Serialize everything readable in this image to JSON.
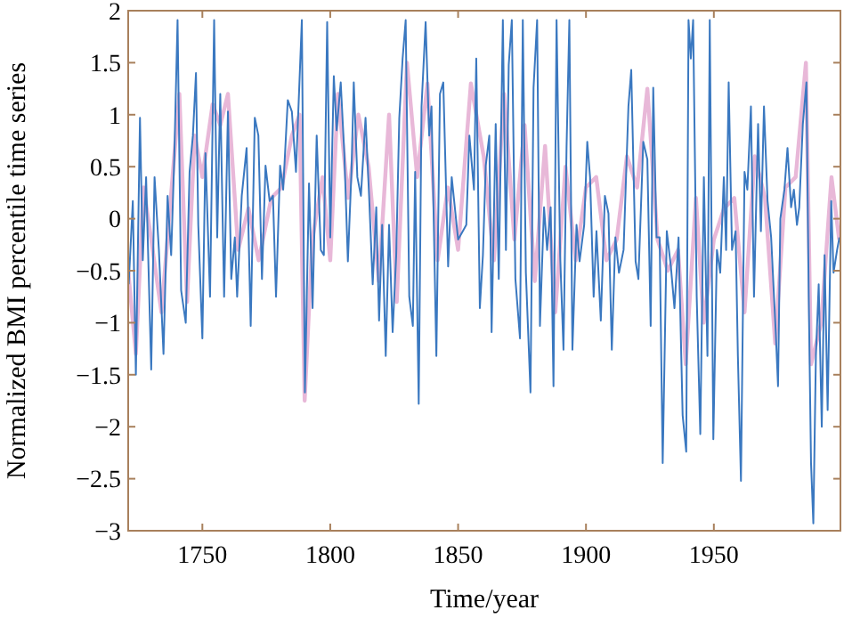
{
  "chart_data": {
    "type": "line",
    "xlabel": "Time/year",
    "ylabel": "Normalized BMI percentile time series",
    "xlim": [
      1721,
      1999.5
    ],
    "xticks": [
      1750,
      1800,
      1850,
      1900,
      1950
    ],
    "ylim": [
      -3,
      2
    ],
    "yticks": [
      {
        "value": -3,
        "label": "−3"
      },
      {
        "value": -2.5,
        "label": "−2.5"
      },
      {
        "value": -2,
        "label": "−2"
      },
      {
        "value": -1.5,
        "label": "−1.5"
      },
      {
        "value": -1,
        "label": "−1"
      },
      {
        "value": -0.5,
        "label": "−0.5"
      },
      0,
      0.5,
      1,
      1.5,
      2
    ],
    "grid": false,
    "marker": "none",
    "line_style": "solid",
    "series": [
      {
        "color": "#e8b8d8",
        "x": [
          1721,
          1724,
          1727,
          1730,
          1734,
          1738,
          1741,
          1744,
          1747,
          1750,
          1754,
          1757,
          1760,
          1764,
          1768,
          1772,
          1777,
          1781,
          1785,
          1788,
          1790,
          1793,
          1797,
          1800,
          1803,
          1807,
          1811,
          1815,
          1819,
          1823,
          1826,
          1830,
          1834,
          1838,
          1842,
          1846,
          1850,
          1855,
          1860,
          1864,
          1868,
          1872,
          1876,
          1880,
          1884,
          1888,
          1892,
          1896,
          1900,
          1904,
          1908,
          1912,
          1916,
          1920,
          1924,
          1928,
          1932,
          1936,
          1939,
          1943,
          1946,
          1950,
          1954,
          1958,
          1962,
          1966,
          1970,
          1974,
          1978,
          1982,
          1986,
          1988,
          1992,
          1996,
          1999
        ],
        "values": [
          -0.5,
          -1.3,
          0.3,
          -0.2,
          -0.9,
          0.3,
          1.2,
          -0.8,
          0.8,
          0.4,
          1.1,
          0.9,
          1.2,
          -0.3,
          0.1,
          -0.4,
          0.2,
          0.3,
          0.8,
          1.0,
          -1.75,
          -0.2,
          0.4,
          -0.4,
          1.2,
          0.2,
          1.0,
          0.5,
          -0.6,
          1.0,
          -0.8,
          1.5,
          0.4,
          1.3,
          -0.4,
          0.3,
          -0.3,
          1.3,
          0.6,
          -0.4,
          1.2,
          -0.2,
          0.9,
          -0.6,
          0.7,
          -0.9,
          0.5,
          -0.4,
          0.3,
          0.4,
          -0.4,
          -0.2,
          0.6,
          0.3,
          1.25,
          -0.2,
          -0.5,
          -0.3,
          -1.4,
          0.2,
          -1.0,
          -0.2,
          0.1,
          0.2,
          -0.9,
          0.6,
          0.2,
          -1.2,
          0.3,
          0.4,
          1.5,
          -1.4,
          -1.0,
          0.4,
          -0.2
        ]
      },
      {
        "color": "#3a78c0",
        "x": [
          1721.2,
          1722.8,
          1724,
          1725.6,
          1726.7,
          1728,
          1730,
          1731.3,
          1733,
          1734.8,
          1736.4,
          1737.8,
          1739,
          1740.3,
          1741.7,
          1743.5,
          1745,
          1746.3,
          1747.5,
          1748.4,
          1750,
          1751.2,
          1753,
          1754.6,
          1755.8,
          1757,
          1758.5,
          1760,
          1761.3,
          1762.7,
          1763.6,
          1765.4,
          1767.3,
          1768.9,
          1770.5,
          1771.9,
          1773.3,
          1774.7,
          1776.3,
          1777.6,
          1778.8,
          1780.4,
          1781.6,
          1783.4,
          1785,
          1786.6,
          1788.9,
          1790.1,
          1791.7,
          1793.1,
          1794.7,
          1796.3,
          1797.5,
          1798.8,
          1800,
          1801.4,
          1802.5,
          1804.1,
          1805.5,
          1806.9,
          1808.3,
          1809.2,
          1810.6,
          1812,
          1813.8,
          1815.2,
          1816.6,
          1818,
          1819.1,
          1820.3,
          1821.7,
          1823,
          1824.4,
          1825.8,
          1827,
          1828.3,
          1829.5,
          1830.9,
          1832.3,
          1833.2,
          1834.6,
          1835.7,
          1837.3,
          1838.7,
          1839.6,
          1841.5,
          1842.9,
          1844.2,
          1846.1,
          1847.5,
          1850,
          1853.2,
          1854.4,
          1856.2,
          1857.1,
          1858.5,
          1859.7,
          1860.8,
          1862.2,
          1863.1,
          1864.7,
          1865.9,
          1867.5,
          1868.7,
          1869.8,
          1871,
          1872.4,
          1874.2,
          1875.3,
          1876.5,
          1878.3,
          1879.5,
          1880.9,
          1882,
          1883.6,
          1884.8,
          1886.2,
          1887.3,
          1888.5,
          1889.9,
          1891.2,
          1892.4,
          1893.5,
          1894.7,
          1896.3,
          1897.5,
          1899.3,
          1900.5,
          1901.6,
          1903,
          1904.1,
          1905.8,
          1907.4,
          1908.8,
          1910.1,
          1911.5,
          1912.9,
          1914.7,
          1916.6,
          1917.7,
          1919.4,
          1920.5,
          1922.4,
          1924,
          1925.3,
          1926.3,
          1927.6,
          1928.8,
          1930,
          1931.6,
          1933.2,
          1934.6,
          1936.2,
          1937.8,
          1939.2,
          1940.1,
          1941,
          1941.9,
          1943.3,
          1944.7,
          1946.1,
          1947.5,
          1948.4,
          1949.8,
          1951.2,
          1952.5,
          1953.9,
          1954.8,
          1955.8,
          1957.1,
          1958.5,
          1959.4,
          1960.6,
          1962,
          1963.1,
          1964.5,
          1965.7,
          1967.3,
          1968.4,
          1969.6,
          1971,
          1972.4,
          1974.2,
          1975.1,
          1976,
          1977.6,
          1978.8,
          1980.2,
          1981.3,
          1982.5,
          1983.4,
          1984.8,
          1986.2,
          1987.1,
          1988,
          1988.9,
          1989.9,
          1991,
          1992.2,
          1993.3,
          1994.5,
          1995.9,
          1996.8,
          1998.2,
          1999.1
        ],
        "values": [
          -0.63,
          0.17,
          -1.5,
          0.97,
          -0.4,
          0.4,
          -1.45,
          0.4,
          -0.3,
          -1.3,
          0.22,
          -0.35,
          0.57,
          1.91,
          -0.69,
          -1.0,
          0.45,
          0.8,
          1.4,
          -0.06,
          -1.15,
          0.63,
          -0.75,
          1.91,
          -0.18,
          1.2,
          -0.75,
          1.03,
          -0.58,
          -0.18,
          -0.75,
          0.22,
          0.68,
          -1.03,
          0.97,
          0.8,
          -0.58,
          0.51,
          0.17,
          0.22,
          -0.75,
          0.51,
          0.28,
          1.14,
          1.03,
          0.45,
          1.91,
          -1.67,
          0.34,
          -0.86,
          0.8,
          -0.3,
          -0.35,
          1.89,
          -0.18,
          1.37,
          0.85,
          1.31,
          0.63,
          -0.41,
          0.45,
          1.31,
          0.4,
          0.22,
          0.97,
          0.22,
          -0.63,
          0.11,
          -0.98,
          -0.06,
          -1.32,
          -0.06,
          -1.09,
          -0.35,
          0.97,
          1.54,
          1.91,
          -0.75,
          -1.03,
          0.45,
          -1.78,
          1.08,
          1.89,
          0.8,
          1.08,
          -1.32,
          1.2,
          1.31,
          -0.46,
          0.4,
          -0.2,
          -0.06,
          0.8,
          0.28,
          1.54,
          -0.86,
          -0.35,
          0.51,
          0.8,
          -1.09,
          0.91,
          -0.58,
          1.91,
          -0.3,
          1.48,
          1.91,
          -0.58,
          -1.15,
          1.91,
          -0.52,
          -1.67,
          1.26,
          1.91,
          -1.03,
          0.11,
          -0.3,
          0.11,
          -1.61,
          1.91,
          -0.35,
          -1.26,
          0.68,
          1.91,
          -1.26,
          -0.06,
          -0.41,
          -0.06,
          0.74,
          0.4,
          -0.75,
          -0.12,
          -0.98,
          0.22,
          0.05,
          -1.26,
          -0.18,
          -0.52,
          -0.3,
          1.08,
          1.43,
          -0.41,
          -0.58,
          0.74,
          0.57,
          -1.03,
          1.26,
          -0.18,
          -0.18,
          -2.35,
          -0.12,
          -0.46,
          -0.86,
          -0.18,
          -1.89,
          -2.24,
          1.91,
          1.54,
          1.91,
          -0.75,
          -2.07,
          0.4,
          -1.32,
          1.91,
          -2.12,
          -0.3,
          -0.52,
          0.4,
          -0.3,
          1.31,
          -0.3,
          -0.12,
          -1.32,
          -2.52,
          0.45,
          0.28,
          1.08,
          -0.75,
          0.91,
          -0.12,
          1.08,
          0.17,
          -0.18,
          -1.09,
          -1.61,
          0,
          0.28,
          0.68,
          0.11,
          0.28,
          -0.06,
          0.11,
          0.91,
          1.31,
          -0.75,
          -2.35,
          -2.93,
          -1.32,
          -0.63,
          -2.0,
          -0.35,
          -1.84,
          0.17,
          -0.52,
          -0.3,
          -0.18
        ]
      }
    ]
  }
}
